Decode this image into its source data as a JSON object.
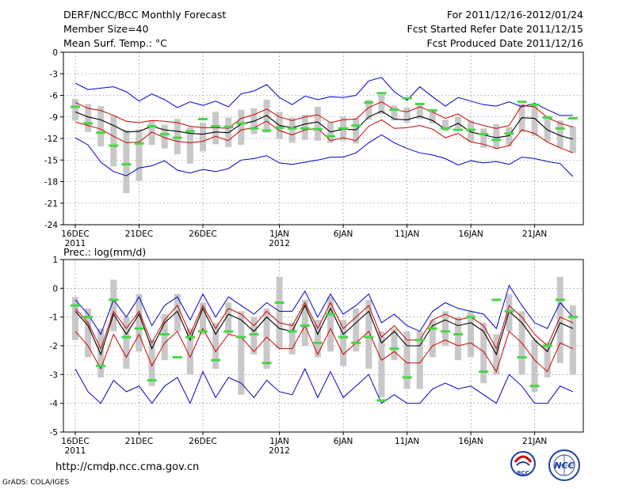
{
  "header": {
    "title": "DERF/NCC/BCC Monthly Forecast",
    "member_size": "Member Size=40",
    "variable": "Mean Surf. Temp.: °C",
    "period": "For 2011/12/16-2012/01/24",
    "refer_date": "Fcst Started Refer Date 2011/12/15",
    "produced_date": "Fcst Produced Date 2011/12/16"
  },
  "footer": {
    "url": "http://cmdp.ncc.cma.gov.cn",
    "credit": "GrADS: COLA/IGES",
    "logo_left_text": "BCC",
    "logo_right_text": "NCC"
  },
  "colors": {
    "spread": "#c8c8c8",
    "obs": "#44d844",
    "mean": "#000000",
    "stdband": "#cc0000",
    "envelope": "#0000cc",
    "grid": "#666666"
  },
  "chart_data": [
    {
      "type": "line",
      "id": "temp",
      "title": "Mean Surf. Temp.: °C",
      "ylim": [
        -24,
        0
      ],
      "yticks": [
        0,
        -3,
        -6,
        -9,
        -12,
        -15,
        -18,
        -21,
        -24
      ],
      "xlim": [
        0,
        39
      ],
      "xtick_days": [
        0,
        5,
        10,
        16,
        21,
        26,
        31,
        36
      ],
      "xtick_labels": [
        "16DEC",
        "21DEC",
        "26DEC",
        "1JAN",
        "6JAN",
        "11JAN",
        "16JAN",
        "21JAN"
      ],
      "xtick_sublabels": [
        "2011",
        "",
        "",
        "2012",
        "",
        "",
        "",
        ""
      ],
      "series": [
        {
          "name": "max",
          "values": [
            -4.3,
            -5.2,
            -5,
            -4.8,
            -5.5,
            -6.8,
            -5.8,
            -6.6,
            -7.7,
            -6.9,
            -7.4,
            -6.8,
            -7.6,
            -5.8,
            -5.4,
            -4.5,
            -6.3,
            -7.3,
            -6.1,
            -6.6,
            -6.2,
            -6.3,
            -6,
            -4,
            -3.5,
            -5.5,
            -6.7,
            -4.8,
            -6.2,
            -7.5,
            -6.3,
            -6.8,
            -7.3,
            -7.5,
            -6.9,
            -7.6,
            -7.1,
            -8,
            -8.8,
            -8.8
          ]
        },
        {
          "name": "plus_std",
          "values": [
            -7,
            -7.8,
            -8.1,
            -8.8,
            -9.6,
            -9.8,
            -9.5,
            -9.6,
            -9.8,
            -10.3,
            -10.5,
            -10.5,
            -10.6,
            -9.2,
            -8.7,
            -7.9,
            -9,
            -9.5,
            -9,
            -8.7,
            -9.8,
            -9.4,
            -9.3,
            -7.7,
            -6.9,
            -8,
            -8.3,
            -7.6,
            -8.3,
            -9.2,
            -8.6,
            -9.7,
            -10.2,
            -10.6,
            -10.2,
            -7.4,
            -7.6,
            -9.1,
            -9.9,
            -10.4
          ]
        },
        {
          "name": "mean",
          "values": [
            -8.3,
            -9,
            -9.4,
            -10.2,
            -11.1,
            -11,
            -10.3,
            -10.8,
            -11,
            -11.3,
            -11.4,
            -11.1,
            -11.2,
            -10,
            -9.6,
            -8.8,
            -10.2,
            -10.5,
            -10,
            -9.7,
            -11.1,
            -10.7,
            -10.8,
            -9,
            -8.2,
            -9.3,
            -9.4,
            -8.9,
            -9.5,
            -10.7,
            -9.9,
            -11.1,
            -11.5,
            -11.9,
            -11.6,
            -9.1,
            -9.2,
            -10.8,
            -11.6,
            -12.1
          ]
        },
        {
          "name": "minus_std",
          "values": [
            -9.7,
            -10.2,
            -10.7,
            -11.7,
            -12.6,
            -12.5,
            -11.1,
            -11.9,
            -12.4,
            -12.6,
            -12.4,
            -11.7,
            -12.3,
            -10.8,
            -10.5,
            -9.6,
            -10.9,
            -11.5,
            -10.8,
            -10.6,
            -12.3,
            -11.9,
            -12.3,
            -10.3,
            -9.4,
            -10.6,
            -10.5,
            -10.2,
            -10.7,
            -11.9,
            -11.3,
            -12.5,
            -12.8,
            -13.4,
            -13,
            -10.8,
            -11.3,
            -12.5,
            -13.3,
            -14
          ]
        },
        {
          "name": "min",
          "values": [
            -11.9,
            -12.9,
            -15.3,
            -16.6,
            -17.2,
            -16.1,
            -15.8,
            -15.1,
            -16.4,
            -16.8,
            -16.3,
            -16.6,
            -16.2,
            -15,
            -14.8,
            -14.4,
            -15.4,
            -15.6,
            -15.3,
            -15,
            -14.6,
            -14.6,
            -14,
            -12.6,
            -11.5,
            -12.6,
            -13.4,
            -14,
            -14.3,
            -14.8,
            -15.7,
            -15.1,
            -15.4,
            -15.2,
            -15.6,
            -14.6,
            -14.8,
            -15.2,
            -15.5,
            -17.3
          ]
        },
        {
          "name": "obs",
          "values": [
            -7.6,
            -9.9,
            -11.2,
            -13,
            -15.6,
            -12.7,
            -10.3,
            -11.4,
            -11.9,
            -11,
            -9.3,
            -10.3,
            -10.4,
            -9.9,
            -10.6,
            -10.9,
            -10.5,
            -10.6,
            -10.6,
            -10.7,
            -11.7,
            -10.6,
            -10.2,
            -7,
            -5.7,
            -8,
            -6.4,
            -7.2,
            -8.1,
            -10.6,
            -10.8,
            -10.8,
            -11.4,
            -12.2,
            -11.3,
            -6.9,
            -7.3,
            -9.1,
            -10.6,
            -9.2
          ]
        },
        {
          "name": "spread_high",
          "values": [
            -6.5,
            -7.2,
            -7.5,
            -8.8,
            -10.8,
            -10.7,
            -9.5,
            -10.1,
            -9.3,
            -10.4,
            -9.8,
            -8.3,
            -9.1,
            -8,
            -7.8,
            -6.6,
            -8.3,
            -9.1,
            -8.7,
            -7.6,
            -9.7,
            -8.9,
            -9.2,
            -6.6,
            -5.9,
            -7.4,
            -7.7,
            -7.2,
            -7.9,
            -9.4,
            -9,
            -9.5,
            -10.6,
            -10,
            -10.4,
            -7.2,
            -7.4,
            -8.8,
            -9.5,
            -10.3
          ]
        },
        {
          "name": "spread_low",
          "values": [
            -9.5,
            -11.1,
            -13.1,
            -15.9,
            -19.6,
            -17.9,
            -12.9,
            -13.4,
            -14.2,
            -15.5,
            -13.8,
            -12.8,
            -13.2,
            -12.9,
            -11.4,
            -11.2,
            -12.1,
            -12.6,
            -12.2,
            -12.3,
            -12.6,
            -12.3,
            -12.7,
            -9.4,
            -8.6,
            -9.5,
            -9.8,
            -9.3,
            -9.9,
            -11,
            -10.6,
            -12.5,
            -13.3,
            -13.4,
            -13.1,
            -11.1,
            -11.7,
            -12.4,
            -13.3,
            -14
          ]
        }
      ]
    },
    {
      "type": "line",
      "id": "prec",
      "title": "Prec.: log(mm/d)",
      "ylim": [
        -5,
        1
      ],
      "yticks": [
        1,
        0,
        -1,
        -2,
        -3,
        -4,
        -5
      ],
      "xlim": [
        0,
        39
      ],
      "xtick_days": [
        0,
        5,
        10,
        16,
        21,
        26,
        31,
        36
      ],
      "xtick_labels": [
        "16DEC",
        "21DEC",
        "26DEC",
        "1JAN",
        "6JAN",
        "11JAN",
        "16JAN",
        "21JAN"
      ],
      "xtick_sublabels": [
        "2011",
        "",
        "",
        "2012",
        "",
        "",
        "",
        ""
      ],
      "series": [
        {
          "name": "max",
          "values": [
            -0.4,
            -0.9,
            -1.6,
            -0.4,
            -1,
            -0.3,
            -1.3,
            -0.6,
            -0.3,
            -1.1,
            -0.2,
            -1,
            -0.3,
            -0.6,
            -0.9,
            -0.5,
            -0.8,
            -0.8,
            -0.1,
            -1,
            -0.2,
            -0.9,
            -0.6,
            -0.2,
            -1.2,
            -0.9,
            -1.3,
            -1.5,
            -0.8,
            -0.5,
            -0.7,
            -0.8,
            -0.9,
            -1.4,
            0.1,
            -0.6,
            -1.2,
            -1.4,
            -0.5,
            -1
          ]
        },
        {
          "name": "plus_std",
          "values": [
            -0.7,
            -1.2,
            -2.1,
            -0.8,
            -1.4,
            -0.8,
            -1.9,
            -1.1,
            -0.6,
            -1.6,
            -0.6,
            -1.4,
            -0.7,
            -0.9,
            -1.3,
            -0.8,
            -1.2,
            -1.3,
            -0.5,
            -1.4,
            -0.5,
            -1.4,
            -1,
            -0.6,
            -1.7,
            -1.3,
            -1.8,
            -1.8,
            -1.1,
            -0.9,
            -1.1,
            -1,
            -1.3,
            -2.1,
            -0.6,
            -1,
            -1.6,
            -2,
            -1,
            -1.2
          ]
        },
        {
          "name": "mean",
          "values": [
            -0.8,
            -1.3,
            -2.3,
            -0.9,
            -1.6,
            -0.9,
            -2.1,
            -1.2,
            -0.8,
            -1.8,
            -0.7,
            -1.6,
            -0.9,
            -1.1,
            -1.5,
            -1,
            -1.4,
            -1.5,
            -0.6,
            -1.6,
            -0.7,
            -1.6,
            -1.2,
            -0.8,
            -1.9,
            -1.5,
            -2,
            -2,
            -1.3,
            -1.1,
            -1.3,
            -1.2,
            -1.5,
            -2.3,
            -0.8,
            -1.2,
            -1.8,
            -2.2,
            -1.2,
            -1.4
          ]
        },
        {
          "name": "minus_std",
          "values": [
            -1.5,
            -2,
            -2.8,
            -1.6,
            -2.4,
            -1.6,
            -2.7,
            -1.9,
            -1.5,
            -2.4,
            -1.4,
            -2.2,
            -1.6,
            -1.7,
            -2.2,
            -1.7,
            -2.1,
            -2.1,
            -1.3,
            -2.3,
            -1.4,
            -2.3,
            -1.9,
            -1.5,
            -2.5,
            -2.2,
            -2.6,
            -2.6,
            -2,
            -1.8,
            -2,
            -1.9,
            -2.2,
            -2.9,
            -1.5,
            -1.9,
            -2.5,
            -2.9,
            -1.9,
            -2.1
          ]
        },
        {
          "name": "min",
          "values": [
            -2.8,
            -3.6,
            -4,
            -3.2,
            -3.6,
            -3.4,
            -4,
            -3.4,
            -3.1,
            -4,
            -2.9,
            -3.8,
            -3.1,
            -3.3,
            -3.8,
            -3.2,
            -3.6,
            -3.7,
            -2.8,
            -3.8,
            -2.9,
            -3.8,
            -3.4,
            -3,
            -4,
            -3.7,
            -4,
            -4,
            -3.5,
            -3.3,
            -3.5,
            -3.4,
            -3.7,
            -4,
            -3,
            -3.4,
            -4,
            -4,
            -3.4,
            -3.6
          ]
        },
        {
          "name": "obs",
          "values": [
            -0.6,
            -1,
            -2.7,
            -0.4,
            -1.7,
            -1.4,
            -3.2,
            -1.6,
            -2.4,
            -1.7,
            -1.5,
            -2.5,
            -1.5,
            -1.7,
            -1.6,
            -2.6,
            -0.5,
            -1.5,
            -1.3,
            -1.9,
            -0.9,
            -1.7,
            -1.9,
            -1.7,
            -3.9,
            -2.1,
            -3.1,
            -1.8,
            -1.4,
            -1.5,
            -1.6,
            -1,
            -2.9,
            -0.4,
            -0.8,
            -2.4,
            -3.4,
            -2,
            -0.4,
            -1
          ]
        },
        {
          "name": "spread_high",
          "values": [
            -0.3,
            -0.7,
            -1.4,
            0.3,
            -1,
            -0.2,
            -1.8,
            -0.9,
            -0.2,
            -1.4,
            -0.5,
            -1.2,
            -0.5,
            -0.8,
            -1,
            -0.7,
            0.4,
            -1.2,
            -0.4,
            -1.1,
            -0.3,
            -1.1,
            -0.7,
            -0.4,
            -1.5,
            -1.4,
            -1.5,
            -1.5,
            -1.1,
            -0.8,
            -1,
            -0.8,
            -1.2,
            -1.6,
            -0.2,
            -0.8,
            -1.8,
            -1.9,
            0.4,
            -0.6
          ]
        },
        {
          "name": "spread_low",
          "values": [
            -1.8,
            -2.4,
            -3.1,
            -1.5,
            -2.8,
            -2.2,
            -3.4,
            -2.5,
            -1.5,
            -3,
            -1.6,
            -2.8,
            -1.6,
            -3.7,
            -2.3,
            -2.8,
            -2.1,
            -2.3,
            -2,
            -2.4,
            -2.2,
            -2.7,
            -2.2,
            -2.8,
            -3.8,
            -2.5,
            -3.5,
            -3.5,
            -2.4,
            -2,
            -2.5,
            -2.4,
            -3.3,
            -3,
            -1.5,
            -3,
            -3.6,
            -3.1,
            -2.6,
            -3
          ]
        }
      ]
    }
  ]
}
